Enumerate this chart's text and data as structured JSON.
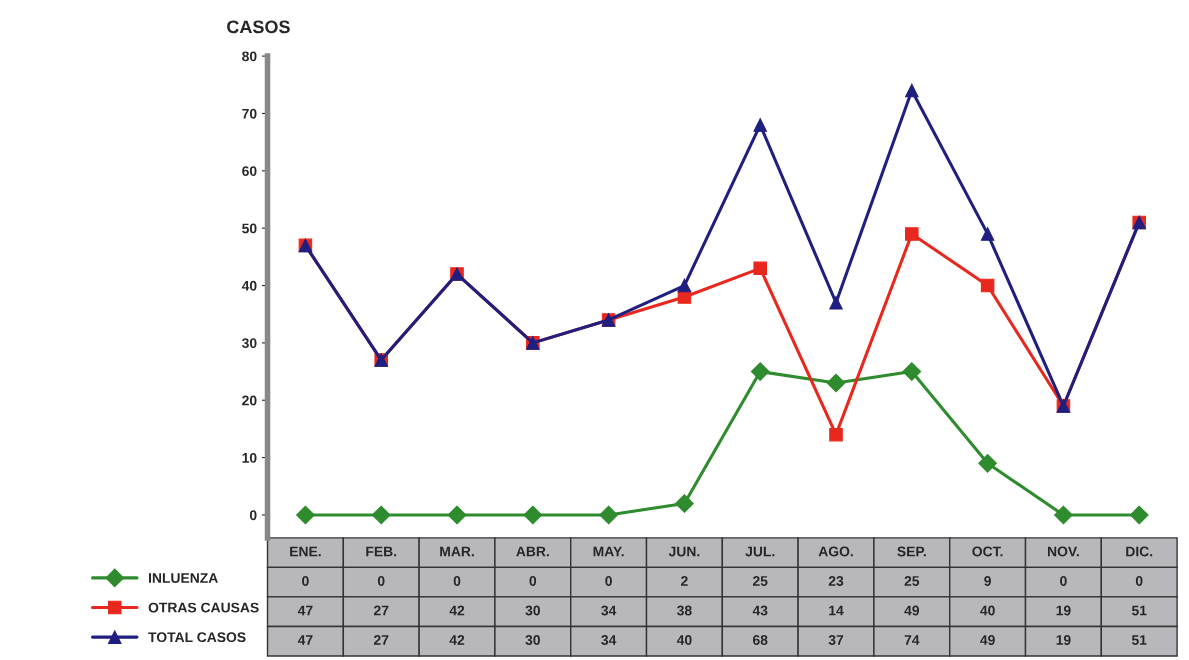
{
  "chart_data": {
    "type": "line",
    "ylabel": "CASOS",
    "categories": [
      "ENE.",
      "FEB.",
      "MAR.",
      "ABR.",
      "MAY.",
      "JUN.",
      "JUL.",
      "AGO.",
      "SEP.",
      "OCT.",
      "NOV.",
      "DIC."
    ],
    "series": [
      {
        "name": "INLUENZA",
        "color": "#2e8b2e",
        "marker": "diamond",
        "values": [
          0,
          0,
          0,
          0,
          0,
          2,
          25,
          23,
          25,
          9,
          0,
          0
        ]
      },
      {
        "name": "OTRAS CAUSAS",
        "color": "#e8281e",
        "marker": "square",
        "values": [
          47,
          27,
          42,
          30,
          34,
          38,
          43,
          14,
          49,
          40,
          19,
          51
        ]
      },
      {
        "name": "TOTAL CASOS",
        "color": "#1f1f80",
        "marker": "triangle",
        "values": [
          47,
          27,
          42,
          30,
          34,
          40,
          68,
          37,
          74,
          49,
          19,
          51
        ]
      }
    ],
    "ylim": [
      -4,
      80
    ],
    "yticks": [
      0,
      10,
      20,
      30,
      40,
      50,
      60,
      70,
      80
    ],
    "legend": "bottom left",
    "data_labels": true,
    "tick_labels": "y",
    "grid": false,
    "line_style": "solid"
  }
}
